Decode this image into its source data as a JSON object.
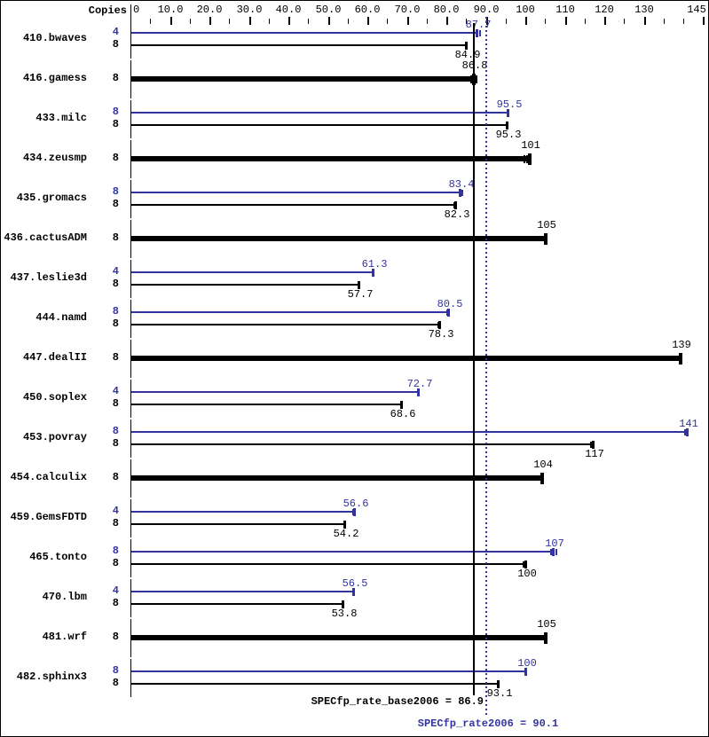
{
  "header": {
    "copies_label": "Copies"
  },
  "colors": {
    "base": "#000000",
    "peak": "#3333a0",
    "background": "#ffffff"
  },
  "footer": {
    "base_summary": "SPECfp_rate_base2006 = 86.9",
    "peak_summary": "SPECfp_rate2006 = 90.1"
  },
  "chart_data": {
    "type": "bar",
    "orientation": "horizontal",
    "xlim": [
      0,
      145
    ],
    "grid": false,
    "legend": "none",
    "copies_column_label": "Copies",
    "axis_labels": [
      {
        "v": 0,
        "t": "0",
        "align": "left"
      },
      {
        "v": 10,
        "t": "10.0"
      },
      {
        "v": 20,
        "t": "20.0"
      },
      {
        "v": 30,
        "t": "30.0"
      },
      {
        "v": 40,
        "t": "40.0"
      },
      {
        "v": 50,
        "t": "50.0"
      },
      {
        "v": 60,
        "t": "60.0"
      },
      {
        "v": 70,
        "t": "70.0"
      },
      {
        "v": 80,
        "t": "80.0"
      },
      {
        "v": 90,
        "t": "90.0"
      },
      {
        "v": 100,
        "t": "100"
      },
      {
        "v": 110,
        "t": "110"
      },
      {
        "v": 120,
        "t": "120"
      },
      {
        "v": 130,
        "t": "130"
      },
      {
        "v": 145,
        "t": "145"
      }
    ],
    "major_ticks": [
      10,
      20,
      30,
      40,
      50,
      60,
      70,
      80,
      90,
      100,
      110,
      120,
      130,
      145
    ],
    "minor_ticks": [
      5,
      15,
      25,
      35,
      45,
      55,
      65,
      75,
      85,
      95,
      105,
      115,
      125,
      135,
      140
    ],
    "reference_lines": [
      {
        "name": "SPECfp_rate_base2006",
        "value": 86.9,
        "label": "SPECfp_rate_base2006 = 86.9",
        "style": "solid",
        "color": "#000000"
      },
      {
        "name": "SPECfp_rate2006",
        "value": 90.1,
        "label": "SPECfp_rate2006 = 90.1",
        "style": "dotted",
        "color": "#3333a0"
      }
    ],
    "benchmarks": [
      {
        "name": "410.bwaves",
        "bars": [
          {
            "kind": "peak",
            "copies": "4",
            "value": 87.7,
            "label": "87.7",
            "run_ticks": [
              88.4
            ]
          },
          {
            "kind": "base",
            "copies": "8",
            "value": 84.9,
            "label": "84.9",
            "run_ticks": []
          }
        ]
      },
      {
        "name": "416.gamess",
        "bars": [
          {
            "kind": "base_only",
            "copies": "8",
            "value": 86.8,
            "label": "86.8",
            "run_ticks": [
              86.1,
              87.4
            ]
          }
        ]
      },
      {
        "name": "433.milc",
        "bars": [
          {
            "kind": "peak",
            "copies": "8",
            "value": 95.5,
            "label": "95.5",
            "run_ticks": []
          },
          {
            "kind": "base",
            "copies": "8",
            "value": 95.3,
            "label": "95.3",
            "run_ticks": []
          }
        ]
      },
      {
        "name": "434.zeusmp",
        "bars": [
          {
            "kind": "base_only",
            "copies": "8",
            "value": 101,
            "label": "101",
            "run_ticks": [
              99.6,
              100.3
            ]
          }
        ]
      },
      {
        "name": "435.gromacs",
        "bars": [
          {
            "kind": "peak",
            "copies": "8",
            "value": 83.4,
            "label": "83.4",
            "run_ticks": [
              83.9
            ]
          },
          {
            "kind": "base",
            "copies": "8",
            "value": 82.3,
            "label": "82.3",
            "run_ticks": [
              81.8
            ]
          }
        ]
      },
      {
        "name": "436.cactusADM",
        "bars": [
          {
            "kind": "base_only",
            "copies": "8",
            "value": 105,
            "label": "105",
            "run_ticks": []
          }
        ]
      },
      {
        "name": "437.leslie3d",
        "bars": [
          {
            "kind": "peak",
            "copies": "4",
            "value": 61.3,
            "label": "61.3",
            "run_ticks": []
          },
          {
            "kind": "base",
            "copies": "8",
            "value": 57.7,
            "label": "57.7",
            "run_ticks": []
          }
        ]
      },
      {
        "name": "444.namd",
        "bars": [
          {
            "kind": "peak",
            "copies": "8",
            "value": 80.5,
            "label": "80.5",
            "run_ticks": [
              80.0
            ]
          },
          {
            "kind": "base",
            "copies": "8",
            "value": 78.3,
            "label": "78.3",
            "run_ticks": [
              77.8
            ]
          }
        ]
      },
      {
        "name": "447.dealII",
        "bars": [
          {
            "kind": "base_only",
            "copies": "8",
            "value": 139,
            "label": "139",
            "run_ticks": []
          }
        ]
      },
      {
        "name": "450.soplex",
        "bars": [
          {
            "kind": "peak",
            "copies": "4",
            "value": 72.7,
            "label": "72.7",
            "run_ticks": []
          },
          {
            "kind": "base",
            "copies": "8",
            "value": 68.6,
            "label": "68.6",
            "run_ticks": []
          }
        ]
      },
      {
        "name": "453.povray",
        "bars": [
          {
            "kind": "peak",
            "copies": "8",
            "value": 141,
            "label": "141",
            "run_ticks": [
              140.2,
              140.8
            ]
          },
          {
            "kind": "base",
            "copies": "8",
            "value": 117,
            "label": "117",
            "run_ticks": [
              116.4
            ]
          }
        ]
      },
      {
        "name": "454.calculix",
        "bars": [
          {
            "kind": "base_only",
            "copies": "8",
            "value": 104,
            "label": "104",
            "run_ticks": []
          }
        ]
      },
      {
        "name": "459.GemsFDTD",
        "bars": [
          {
            "kind": "peak",
            "copies": "4",
            "value": 56.6,
            "label": "56.6",
            "run_ticks": [
              56.2
            ]
          },
          {
            "kind": "base",
            "copies": "8",
            "value": 54.2,
            "label": "54.2",
            "run_ticks": []
          }
        ]
      },
      {
        "name": "465.tonto",
        "bars": [
          {
            "kind": "peak",
            "copies": "8",
            "value": 107,
            "label": "107",
            "run_ticks": [
              106.4,
              107.6
            ]
          },
          {
            "kind": "base",
            "copies": "8",
            "value": 100,
            "label": "100",
            "run_ticks": [
              99.4
            ]
          }
        ]
      },
      {
        "name": "470.lbm",
        "bars": [
          {
            "kind": "peak",
            "copies": "4",
            "value": 56.5,
            "label": "56.5",
            "run_ticks": []
          },
          {
            "kind": "base",
            "copies": "8",
            "value": 53.8,
            "label": "53.8",
            "run_ticks": []
          }
        ]
      },
      {
        "name": "481.wrf",
        "bars": [
          {
            "kind": "base_only",
            "copies": "8",
            "value": 105,
            "label": "105",
            "run_ticks": []
          }
        ]
      },
      {
        "name": "482.sphinx3",
        "bars": [
          {
            "kind": "peak",
            "copies": "8",
            "value": 100,
            "label": "100",
            "run_ticks": []
          },
          {
            "kind": "base",
            "copies": "8",
            "value": 93.1,
            "label": "93.1",
            "run_ticks": []
          }
        ]
      }
    ]
  }
}
